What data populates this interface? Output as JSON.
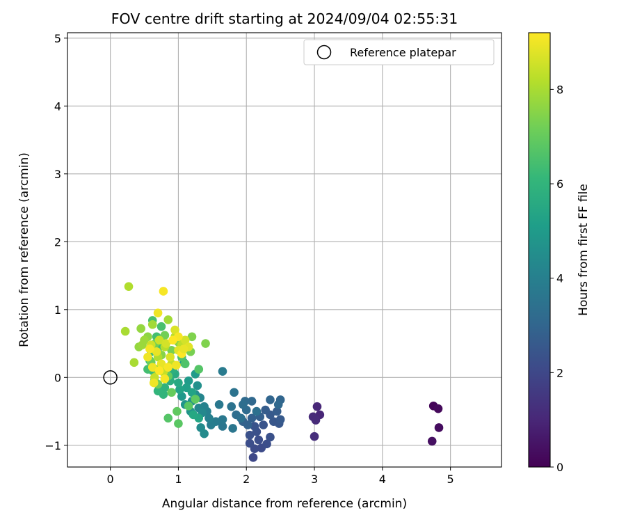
{
  "chart_data": {
    "type": "scatter",
    "title": "FOV centre drift starting at 2024/09/04 02:55:31",
    "xlabel": "Angular distance from reference (arcmin)",
    "ylabel": "Rotation from reference (arcmin)",
    "xlim": [
      -0.63,
      5.75
    ],
    "ylim": [
      -1.32,
      5.08
    ],
    "xticks": [
      0,
      1,
      2,
      3,
      4,
      5
    ],
    "yticks": [
      -1,
      0,
      1,
      2,
      3,
      4,
      5
    ],
    "xtick_labels": [
      "0",
      "1",
      "2",
      "3",
      "4",
      "5"
    ],
    "ytick_labels": [
      "−1",
      "0",
      "1",
      "2",
      "3",
      "4",
      "5"
    ],
    "grid": true,
    "legend": {
      "location": "upper right",
      "entries": [
        "Reference platepar"
      ]
    },
    "reference_point": {
      "x": 0,
      "y": 0
    },
    "colorbar": {
      "label": "Hours from first FF file",
      "range": [
        0,
        9.2
      ],
      "ticks": [
        0,
        2,
        4,
        6,
        8
      ],
      "tick_labels": [
        "0",
        "2",
        "4",
        "6",
        "8"
      ],
      "colormap": "viridis",
      "colors": [
        "#440154",
        "#482878",
        "#3e4989",
        "#31688e",
        "#26828e",
        "#1f9e89",
        "#35b779",
        "#6ece58",
        "#b5de2b",
        "#fde725"
      ]
    },
    "points": [
      {
        "x": 4.75,
        "y": -0.42,
        "c": 0.1
      },
      {
        "x": 4.82,
        "y": -0.46,
        "c": 0.2
      },
      {
        "x": 4.83,
        "y": -0.74,
        "c": 0.3
      },
      {
        "x": 4.73,
        "y": -0.94,
        "c": 0.4
      },
      {
        "x": 3.04,
        "y": -0.43,
        "c": 1.0
      },
      {
        "x": 3.08,
        "y": -0.55,
        "c": 1.0
      },
      {
        "x": 2.98,
        "y": -0.58,
        "c": 1.1
      },
      {
        "x": 3.02,
        "y": -0.63,
        "c": 1.1
      },
      {
        "x": 3.0,
        "y": -0.87,
        "c": 1.2
      },
      {
        "x": 2.1,
        "y": -1.18,
        "c": 2.0
      },
      {
        "x": 2.12,
        "y": -1.05,
        "c": 2.1
      },
      {
        "x": 2.22,
        "y": -1.04,
        "c": 2.1
      },
      {
        "x": 2.05,
        "y": -0.97,
        "c": 2.2
      },
      {
        "x": 2.18,
        "y": -0.92,
        "c": 2.2
      },
      {
        "x": 2.3,
        "y": -0.98,
        "c": 2.2
      },
      {
        "x": 2.05,
        "y": -0.85,
        "c": 2.3
      },
      {
        "x": 2.15,
        "y": -0.8,
        "c": 2.3
      },
      {
        "x": 2.35,
        "y": -0.88,
        "c": 2.3
      },
      {
        "x": 2.25,
        "y": -0.7,
        "c": 2.4
      },
      {
        "x": 2.12,
        "y": -0.72,
        "c": 2.4
      },
      {
        "x": 2.4,
        "y": -0.65,
        "c": 2.5
      },
      {
        "x": 2.48,
        "y": -0.68,
        "c": 2.5
      },
      {
        "x": 2.5,
        "y": -0.62,
        "c": 2.6
      },
      {
        "x": 2.35,
        "y": -0.55,
        "c": 2.6
      },
      {
        "x": 2.45,
        "y": -0.5,
        "c": 2.7
      },
      {
        "x": 2.28,
        "y": -0.48,
        "c": 2.7
      },
      {
        "x": 2.2,
        "y": -0.58,
        "c": 2.8
      },
      {
        "x": 2.08,
        "y": -0.6,
        "c": 2.8
      },
      {
        "x": 2.02,
        "y": -0.7,
        "c": 2.9
      },
      {
        "x": 1.95,
        "y": -0.65,
        "c": 2.9
      },
      {
        "x": 2.35,
        "y": -0.33,
        "c": 3.0
      },
      {
        "x": 2.5,
        "y": -0.33,
        "c": 3.0
      },
      {
        "x": 2.47,
        "y": -0.4,
        "c": 3.1
      },
      {
        "x": 2.08,
        "y": -0.35,
        "c": 3.1
      },
      {
        "x": 1.98,
        "y": -0.35,
        "c": 3.2
      },
      {
        "x": 2.0,
        "y": -0.48,
        "c": 3.2
      },
      {
        "x": 1.95,
        "y": -0.4,
        "c": 3.3
      },
      {
        "x": 1.85,
        "y": -0.55,
        "c": 3.3
      },
      {
        "x": 1.92,
        "y": -0.6,
        "c": 3.4
      },
      {
        "x": 2.15,
        "y": -0.5,
        "c": 3.4
      },
      {
        "x": 1.82,
        "y": -0.22,
        "c": 3.5
      },
      {
        "x": 1.78,
        "y": -0.43,
        "c": 3.5
      },
      {
        "x": 1.8,
        "y": -0.75,
        "c": 3.6
      },
      {
        "x": 1.65,
        "y": -0.72,
        "c": 3.6
      },
      {
        "x": 1.65,
        "y": -0.62,
        "c": 3.7
      },
      {
        "x": 1.6,
        "y": -0.4,
        "c": 3.7
      },
      {
        "x": 1.65,
        "y": 0.09,
        "c": 3.8
      },
      {
        "x": 1.55,
        "y": -0.65,
        "c": 3.8
      },
      {
        "x": 1.48,
        "y": -0.7,
        "c": 3.9
      },
      {
        "x": 1.42,
        "y": -0.5,
        "c": 4.0
      },
      {
        "x": 1.45,
        "y": -0.6,
        "c": 4.0
      },
      {
        "x": 1.38,
        "y": -0.43,
        "c": 4.1
      },
      {
        "x": 1.32,
        "y": -0.3,
        "c": 4.2
      },
      {
        "x": 1.3,
        "y": -0.45,
        "c": 4.2
      },
      {
        "x": 1.35,
        "y": -0.52,
        "c": 4.3
      },
      {
        "x": 1.38,
        "y": -0.83,
        "c": 4.4
      },
      {
        "x": 1.33,
        "y": -0.74,
        "c": 4.4
      },
      {
        "x": 1.25,
        "y": -0.25,
        "c": 4.5
      },
      {
        "x": 1.28,
        "y": -0.12,
        "c": 4.6
      },
      {
        "x": 1.2,
        "y": -0.35,
        "c": 4.6
      },
      {
        "x": 1.18,
        "y": -0.5,
        "c": 4.7
      },
      {
        "x": 1.1,
        "y": -0.4,
        "c": 4.8
      },
      {
        "x": 1.05,
        "y": -0.28,
        "c": 4.9
      },
      {
        "x": 1.15,
        "y": -0.05,
        "c": 5.0
      },
      {
        "x": 1.25,
        "y": 0.05,
        "c": 5.0
      },
      {
        "x": 1.08,
        "y": 0.22,
        "c": 5.1
      },
      {
        "x": 1.12,
        "y": -0.15,
        "c": 5.2
      },
      {
        "x": 1.02,
        "y": -0.18,
        "c": 5.3
      },
      {
        "x": 1.2,
        "y": -0.22,
        "c": 5.3
      },
      {
        "x": 1.3,
        "y": -0.6,
        "c": 5.4
      },
      {
        "x": 1.22,
        "y": -0.55,
        "c": 5.5
      },
      {
        "x": 1.0,
        "y": -0.08,
        "c": 5.5
      },
      {
        "x": 0.95,
        "y": 0.05,
        "c": 5.6
      },
      {
        "x": 0.88,
        "y": -0.05,
        "c": 5.7
      },
      {
        "x": 0.92,
        "y": 0.12,
        "c": 5.8
      },
      {
        "x": 0.8,
        "y": -0.15,
        "c": 5.9
      },
      {
        "x": 0.78,
        "y": -0.25,
        "c": 6.0
      },
      {
        "x": 0.7,
        "y": -0.2,
        "c": 6.0
      },
      {
        "x": 0.65,
        "y": -0.05,
        "c": 6.1
      },
      {
        "x": 0.62,
        "y": 0.1,
        "c": 6.2
      },
      {
        "x": 0.58,
        "y": 0.25,
        "c": 6.2
      },
      {
        "x": 0.6,
        "y": 0.38,
        "c": 6.3
      },
      {
        "x": 0.72,
        "y": 0.45,
        "c": 6.3
      },
      {
        "x": 0.55,
        "y": 0.12,
        "c": 6.4
      },
      {
        "x": 0.68,
        "y": 0.6,
        "c": 6.4
      },
      {
        "x": 0.62,
        "y": 0.84,
        "c": 6.5
      },
      {
        "x": 0.75,
        "y": 0.75,
        "c": 6.5
      },
      {
        "x": 1.05,
        "y": 0.3,
        "c": 6.6
      },
      {
        "x": 1.1,
        "y": 0.2,
        "c": 6.6
      },
      {
        "x": 1.3,
        "y": 0.12,
        "c": 6.7
      },
      {
        "x": 0.85,
        "y": -0.6,
        "c": 6.7
      },
      {
        "x": 1.0,
        "y": -0.68,
        "c": 6.8
      },
      {
        "x": 1.15,
        "y": -0.42,
        "c": 6.8
      },
      {
        "x": 1.25,
        "y": -0.32,
        "c": 6.9
      },
      {
        "x": 0.98,
        "y": -0.5,
        "c": 6.9
      },
      {
        "x": 0.9,
        "y": -0.22,
        "c": 7.0
      },
      {
        "x": 0.85,
        "y": 0.02,
        "c": 7.0
      },
      {
        "x": 0.7,
        "y": -0.1,
        "c": 7.1
      },
      {
        "x": 0.6,
        "y": 0.22,
        "c": 7.1
      },
      {
        "x": 0.66,
        "y": 0.5,
        "c": 7.2
      },
      {
        "x": 0.8,
        "y": 0.62,
        "c": 7.2
      },
      {
        "x": 0.9,
        "y": 0.4,
        "c": 7.3
      },
      {
        "x": 1.18,
        "y": 0.38,
        "c": 7.3
      },
      {
        "x": 1.2,
        "y": 0.6,
        "c": 7.4
      },
      {
        "x": 1.4,
        "y": 0.5,
        "c": 7.4
      },
      {
        "x": 1.0,
        "y": 0.52,
        "c": 7.5
      },
      {
        "x": 0.75,
        "y": 0.33,
        "c": 7.5
      },
      {
        "x": 0.68,
        "y": 0.12,
        "c": 7.6
      },
      {
        "x": 0.55,
        "y": 0.6,
        "c": 7.6
      },
      {
        "x": 0.45,
        "y": 0.72,
        "c": 7.7
      },
      {
        "x": 0.42,
        "y": 0.45,
        "c": 7.7
      },
      {
        "x": 0.47,
        "y": 0.48,
        "c": 7.8
      },
      {
        "x": 0.5,
        "y": 0.55,
        "c": 7.8
      },
      {
        "x": 0.62,
        "y": 0.78,
        "c": 7.9
      },
      {
        "x": 0.85,
        "y": 0.85,
        "c": 7.9
      },
      {
        "x": 0.22,
        "y": 0.68,
        "c": 8.0
      },
      {
        "x": 0.35,
        "y": 0.22,
        "c": 8.0
      },
      {
        "x": 0.27,
        "y": 1.34,
        "c": 8.1
      },
      {
        "x": 0.7,
        "y": 0.3,
        "c": 8.1
      },
      {
        "x": 0.8,
        "y": 0.45,
        "c": 8.2
      },
      {
        "x": 0.95,
        "y": 0.6,
        "c": 8.2
      },
      {
        "x": 1.05,
        "y": 0.48,
        "c": 8.3
      },
      {
        "x": 0.9,
        "y": 0.2,
        "c": 8.3
      },
      {
        "x": 0.65,
        "y": 0.0,
        "c": 8.4
      },
      {
        "x": 0.78,
        "y": 0.08,
        "c": 8.4
      },
      {
        "x": 0.6,
        "y": 0.48,
        "c": 8.5
      },
      {
        "x": 0.72,
        "y": 0.55,
        "c": 8.5
      },
      {
        "x": 0.82,
        "y": 0.5,
        "c": 8.6
      },
      {
        "x": 1.1,
        "y": 0.55,
        "c": 8.6
      },
      {
        "x": 0.95,
        "y": 0.7,
        "c": 8.7
      },
      {
        "x": 0.88,
        "y": 0.3,
        "c": 8.7
      },
      {
        "x": 1.0,
        "y": 0.4,
        "c": 8.8
      },
      {
        "x": 1.15,
        "y": 0.45,
        "c": 8.8
      },
      {
        "x": 0.75,
        "y": 0.2,
        "c": 8.9
      },
      {
        "x": 0.68,
        "y": 0.38,
        "c": 8.9
      },
      {
        "x": 0.62,
        "y": 0.15,
        "c": 9.0
      },
      {
        "x": 0.55,
        "y": 0.3,
        "c": 9.0
      },
      {
        "x": 0.78,
        "y": 1.27,
        "c": 9.1
      },
      {
        "x": 0.7,
        "y": 0.95,
        "c": 9.0
      },
      {
        "x": 0.85,
        "y": 0.15,
        "c": 9.1
      },
      {
        "x": 1.0,
        "y": 0.6,
        "c": 9.1
      },
      {
        "x": 1.05,
        "y": 0.35,
        "c": 9.2
      },
      {
        "x": 0.92,
        "y": 0.55,
        "c": 9.2
      },
      {
        "x": 0.8,
        "y": -0.02,
        "c": 9.1
      },
      {
        "x": 0.72,
        "y": 0.1,
        "c": 9.2
      },
      {
        "x": 0.64,
        "y": -0.08,
        "c": 9.0
      },
      {
        "x": 0.58,
        "y": 0.42,
        "c": 9.1
      },
      {
        "x": 0.97,
        "y": 0.18,
        "c": 9.0
      },
      {
        "x": 1.08,
        "y": 0.42,
        "c": 8.9
      }
    ]
  }
}
